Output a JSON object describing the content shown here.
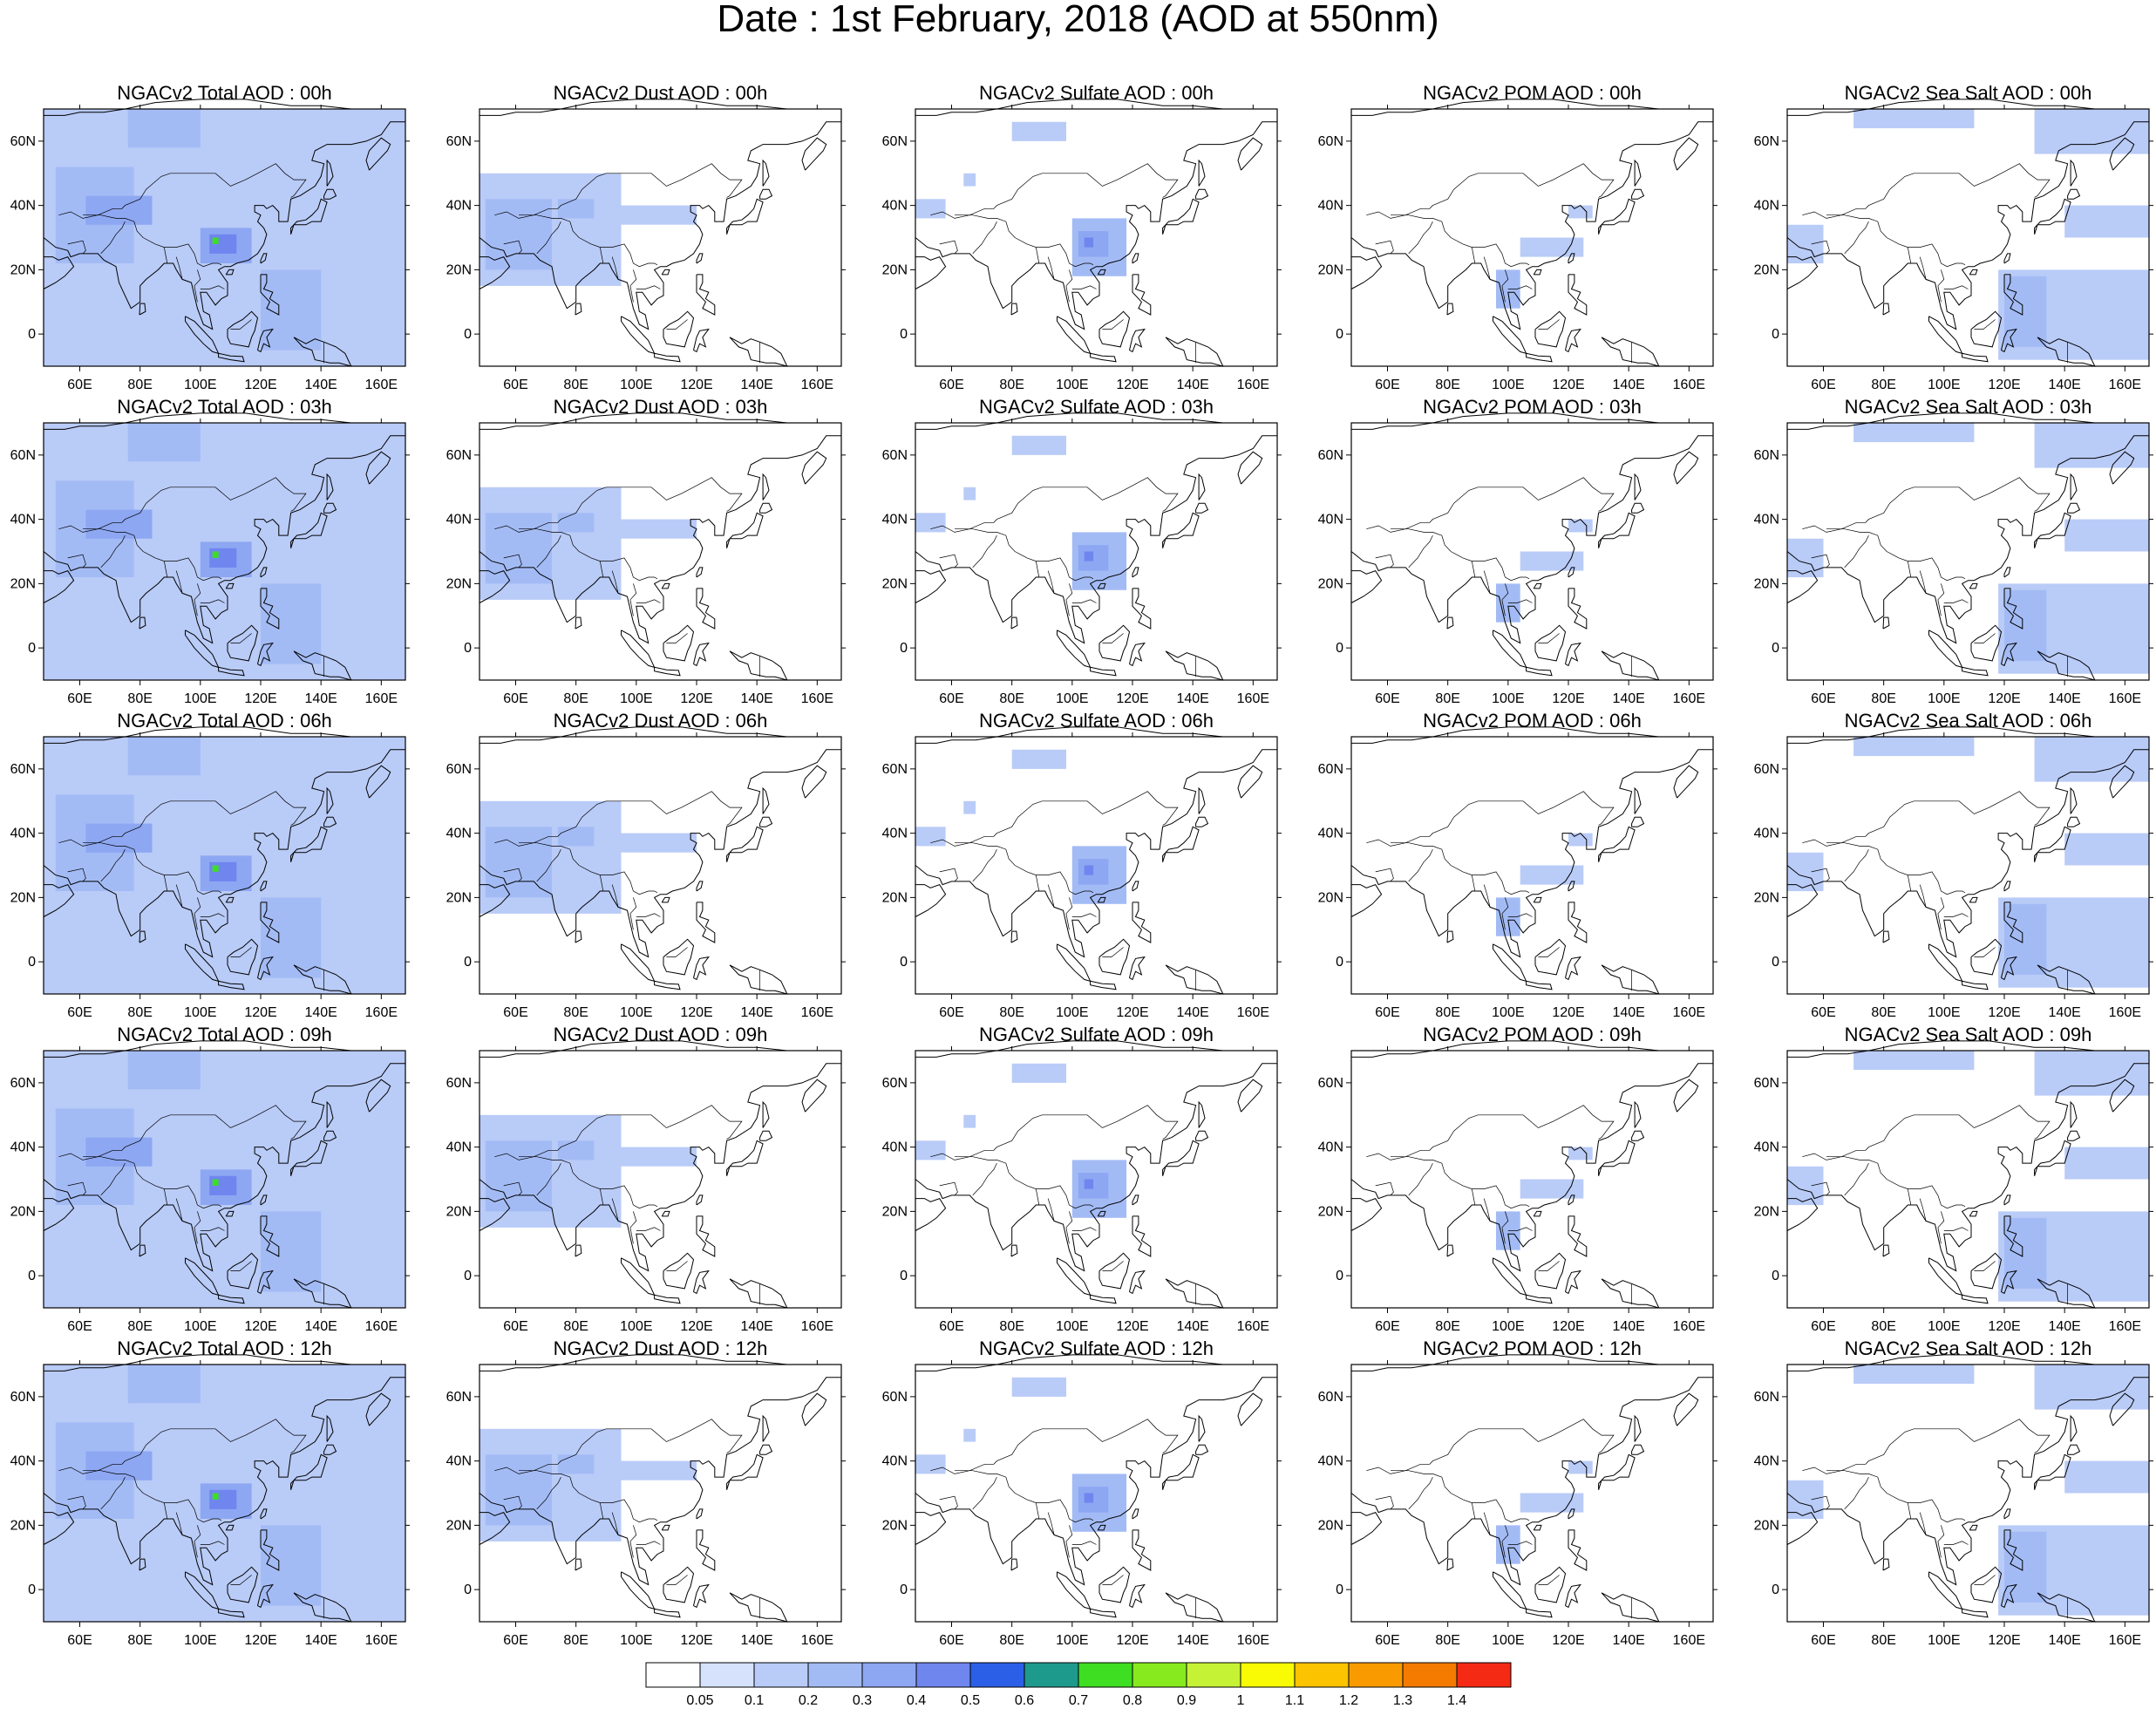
{
  "title": "Date : 1st February, 2018 (AOD at 550nm)",
  "chart_data": {
    "type": "heatmap",
    "map_extent": {
      "lon": [
        48,
        168
      ],
      "lat": [
        -10,
        70
      ]
    },
    "lon_ticks": [
      "60E",
      "80E",
      "100E",
      "120E",
      "140E",
      "160E"
    ],
    "lat_ticks": [
      "60N",
      "40N",
      "20N",
      "0"
    ],
    "lon_tick_values": [
      60,
      80,
      100,
      120,
      140,
      160
    ],
    "lat_tick_values": [
      60,
      40,
      20,
      0
    ],
    "colorbar": {
      "labels": [
        "0.05",
        "0.1",
        "0.2",
        "0.3",
        "0.4",
        "0.5",
        "0.6",
        "0.7",
        "0.8",
        "0.9",
        "1",
        "1.1",
        "1.2",
        "1.3",
        "1.4"
      ],
      "colors": [
        "#ffffff",
        "#d6e2fb",
        "#b9cbf7",
        "#a3bbf5",
        "#8da7f2",
        "#6f86ef",
        "#2b5fe8",
        "#1e9a8c",
        "#3ede22",
        "#86ea1e",
        "#c6f236",
        "#f8fb04",
        "#fbc300",
        "#f99b00",
        "#f57a00",
        "#f42a14"
      ]
    },
    "columns": [
      {
        "key": "total",
        "titles": [
          "NGACv2 Total AOD : 00h",
          "NGACv2 Total AOD : 03h",
          "NGACv2 Total AOD : 06h",
          "NGACv2 Total AOD : 09h",
          "NGACv2 Total AOD  : 12h"
        ]
      },
      {
        "key": "dust",
        "titles": [
          "NGACv2 Dust AOD : 00h",
          "NGACv2 Dust AOD : 03h",
          "NGACv2 Dust AOD : 06h",
          "NGACv2 Dust AOD : 09h",
          "NGACv2 Dust AOD : 12h"
        ]
      },
      {
        "key": "sulfate",
        "titles": [
          "NGACv2 Sulfate AOD : 00h",
          "NGACv2 Sulfate AOD : 03h",
          "NGACv2 Sulfate AOD : 06h",
          "NGACv2 Sulfate AOD : 09h",
          "NGACv2 Sulfate AOD : 12h"
        ]
      },
      {
        "key": "pom",
        "titles": [
          "NGACv2 POM AOD : 00h",
          "NGACv2 POM AOD : 03h",
          "NGACv2 POM AOD : 06h",
          "NGACv2 POM AOD : 09h",
          "NGACv2 POM  AOD : 12h"
        ]
      },
      {
        "key": "seasalt",
        "titles": [
          "NGACv2 Sea Salt AOD : 00h",
          "NGACv2 Sea Salt AOD : 03h",
          "NGACv2 Sea Salt AOD : 06h",
          "NGACv2 Sea Salt  AOD : 09h",
          "NGACv2 Sea Salt  AOD : 12h"
        ]
      }
    ],
    "aerosol_regions": {
      "total": [
        {
          "lon": [
            48,
            168
          ],
          "lat": [
            -10,
            70
          ],
          "level": 0.1
        },
        {
          "lon": [
            52,
            78
          ],
          "lat": [
            22,
            52
          ],
          "level": 0.2
        },
        {
          "lon": [
            62,
            84
          ],
          "lat": [
            34,
            43
          ],
          "level": 0.3
        },
        {
          "lon": [
            100,
            117
          ],
          "lat": [
            22,
            33
          ],
          "level": 0.3
        },
        {
          "lon": [
            103,
            112
          ],
          "lat": [
            25,
            31
          ],
          "level": 0.4
        },
        {
          "lon": [
            104,
            106
          ],
          "lat": [
            28,
            30
          ],
          "level": 0.7
        },
        {
          "lon": [
            120,
            140
          ],
          "lat": [
            -5,
            20
          ],
          "level": 0.2
        },
        {
          "lon": [
            76,
            100
          ],
          "lat": [
            58,
            70
          ],
          "level": 0.2
        }
      ],
      "dust": [
        {
          "lon": [
            48,
            95
          ],
          "lat": [
            15,
            50
          ],
          "level": 0.1
        },
        {
          "lon": [
            50,
            72
          ],
          "lat": [
            20,
            42
          ],
          "level": 0.2
        },
        {
          "lon": [
            74,
            86
          ],
          "lat": [
            36,
            42
          ],
          "level": 0.2
        },
        {
          "lon": [
            86,
            120
          ],
          "lat": [
            34,
            40
          ],
          "level": 0.1
        }
      ],
      "sulfate": [
        {
          "lon": [
            100,
            118
          ],
          "lat": [
            18,
            36
          ],
          "level": 0.2
        },
        {
          "lon": [
            102,
            112
          ],
          "lat": [
            24,
            32
          ],
          "level": 0.3
        },
        {
          "lon": [
            104,
            107
          ],
          "lat": [
            27,
            30
          ],
          "level": 0.4
        },
        {
          "lon": [
            80,
            98
          ],
          "lat": [
            60,
            66
          ],
          "level": 0.1
        },
        {
          "lon": [
            48,
            58
          ],
          "lat": [
            36,
            42
          ],
          "level": 0.1
        },
        {
          "lon": [
            64,
            68
          ],
          "lat": [
            46,
            50
          ],
          "level": 0.1
        }
      ],
      "pom": [
        {
          "lon": [
            96,
            104
          ],
          "lat": [
            8,
            20
          ],
          "level": 0.2
        },
        {
          "lon": [
            104,
            125
          ],
          "lat": [
            24,
            30
          ],
          "level": 0.1
        },
        {
          "lon": [
            120,
            128
          ],
          "lat": [
            36,
            40
          ],
          "level": 0.1
        }
      ],
      "seasalt": [
        {
          "lon": [
            118,
            168
          ],
          "lat": [
            -8,
            20
          ],
          "level": 0.1
        },
        {
          "lon": [
            120,
            134
          ],
          "lat": [
            -4,
            18
          ],
          "level": 0.2
        },
        {
          "lon": [
            130,
            168
          ],
          "lat": [
            56,
            70
          ],
          "level": 0.1
        },
        {
          "lon": [
            70,
            110
          ],
          "lat": [
            64,
            70
          ],
          "level": 0.1
        },
        {
          "lon": [
            48,
            60
          ],
          "lat": [
            22,
            34
          ],
          "level": 0.1
        },
        {
          "lon": [
            140,
            168
          ],
          "lat": [
            30,
            40
          ],
          "level": 0.1
        }
      ]
    }
  }
}
